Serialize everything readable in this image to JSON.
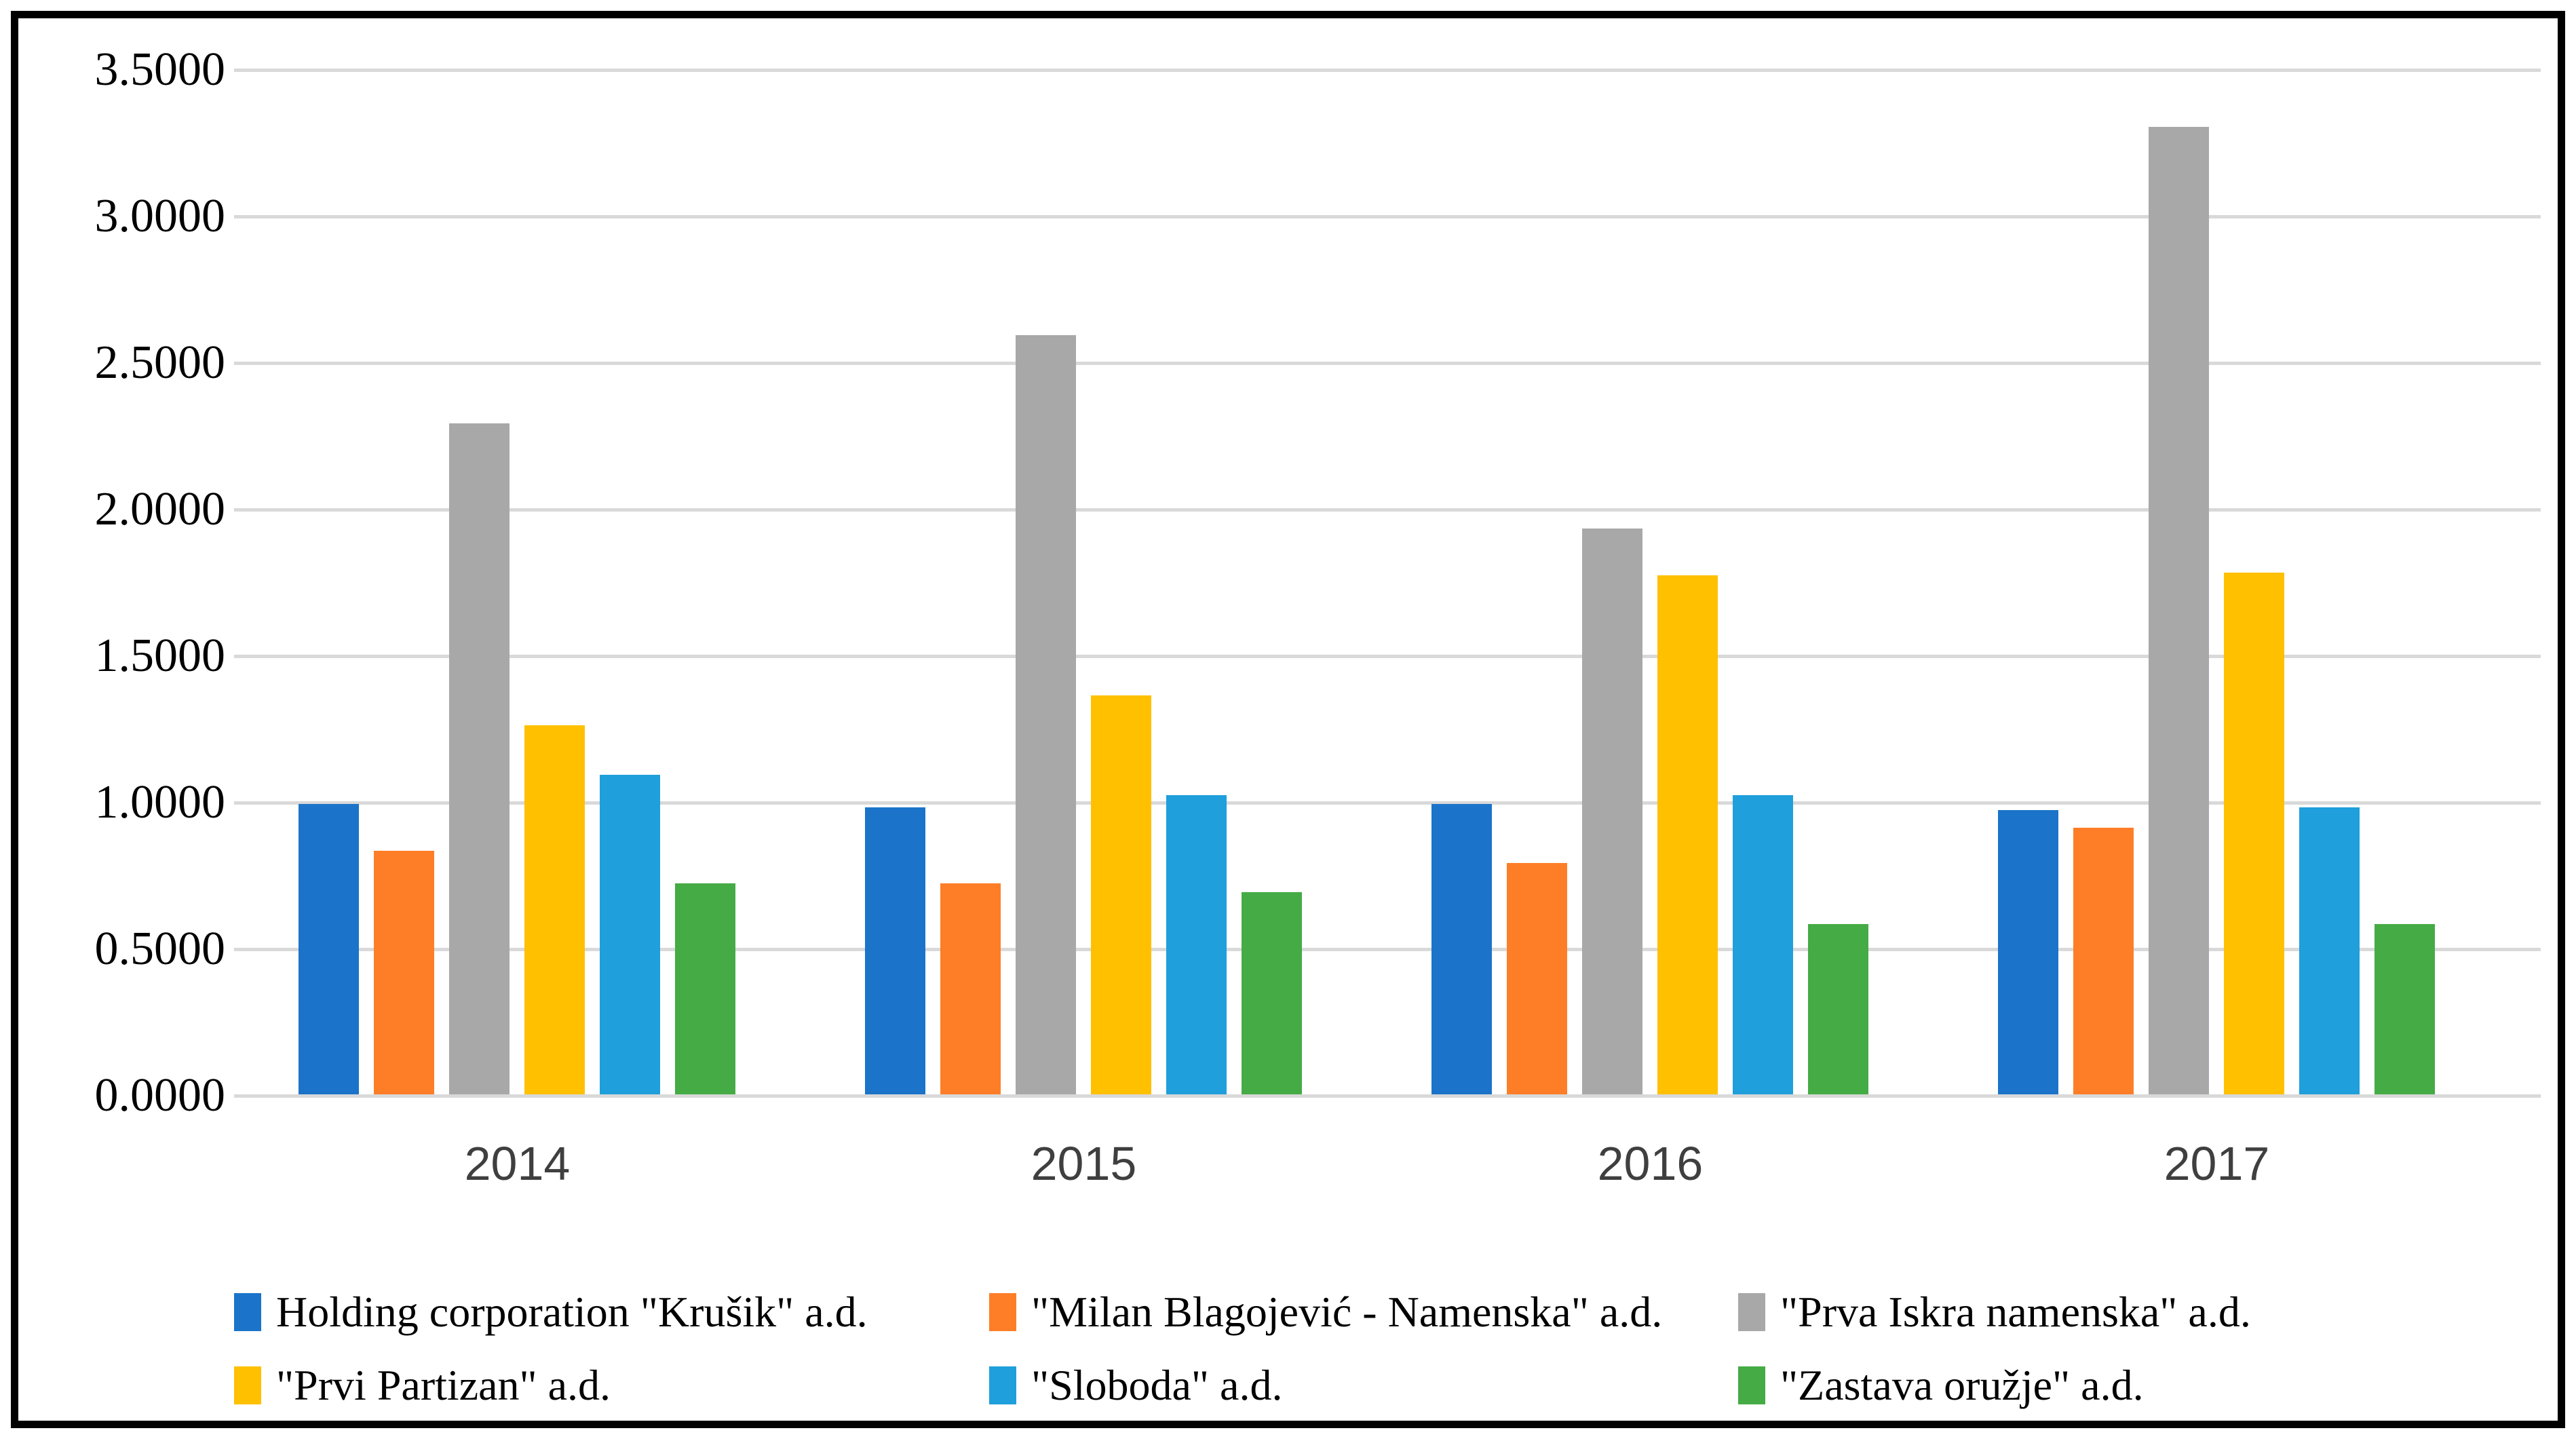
{
  "figure": {
    "border_color": "#000000",
    "background_color": "#ffffff"
  },
  "chart_data": {
    "type": "bar",
    "title": "",
    "xlabel": "",
    "ylabel": "",
    "categories": [
      "2014",
      "2015",
      "2016",
      "2017"
    ],
    "series": [
      {
        "name": "Holding corporation \"Krušik\" a.d.",
        "color": "#1b74c9",
        "values": [
          0.99,
          0.98,
          0.99,
          0.97
        ]
      },
      {
        "name": "\"Milan Blagojević - Namenska\" a.d.",
        "color": "#fd7e27",
        "values": [
          0.83,
          0.72,
          0.79,
          0.91
        ]
      },
      {
        "name": "\"Prva Iskra namenska\" a.d.",
        "color": "#a8a8a8",
        "values": [
          2.29,
          2.59,
          1.93,
          3.3
        ]
      },
      {
        "name": "\"Prvi Partizan\" a.d.",
        "color": "#ffc000",
        "values": [
          1.26,
          1.36,
          1.77,
          1.78
        ]
      },
      {
        "name": "\"Sloboda\" a.d.",
        "color": "#1f9fdb",
        "values": [
          1.09,
          1.02,
          1.02,
          0.98
        ]
      },
      {
        "name": "\"Zastava oružje\" a.d.",
        "color": "#45ab45",
        "values": [
          0.72,
          0.69,
          0.58,
          0.58
        ]
      }
    ],
    "ylim": [
      0.0,
      3.5
    ],
    "ytick_step": 0.5,
    "ytick_labels": [
      "0.0000",
      "0.5000",
      "1.0000",
      "1.5000",
      "2.0000",
      "2.5000",
      "3.0000",
      "3.5000"
    ],
    "grid": true,
    "gridline_color": "#d9d9d9",
    "x_tick_label_color": "#3f3f3f",
    "y_tick_label_color": "#000000",
    "legend_position": "bottom",
    "legend_rows": 2,
    "legend_columns": 3
  }
}
